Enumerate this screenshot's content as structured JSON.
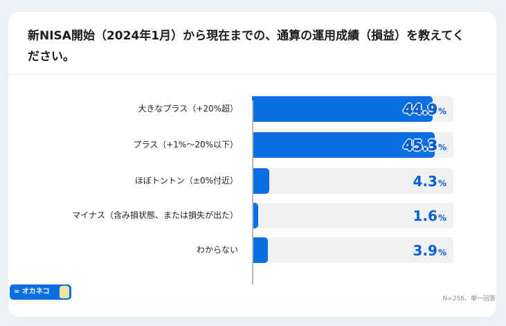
{
  "chart_data": {
    "type": "bar",
    "orientation": "horizontal",
    "title": "新NISA開始（2024年1月）から現在までの、通算の運用成績（損益）を教えてください。",
    "categories": [
      "大きなプラス（+20%超）",
      "プラス（+1%〜20%以下）",
      "ほぼトントン（±0%付近）",
      "マイナス（含み損状態、または損失が出た）",
      "わからない"
    ],
    "values": [
      44.9,
      45.3,
      4.3,
      1.6,
      3.9
    ],
    "unit": "%",
    "xlim": [
      0,
      50
    ],
    "grid": false
  },
  "footer": {
    "brand": "オカネコ",
    "note": "N=256、単一回答"
  },
  "colors": {
    "bar": "#0a6fe0",
    "track": "#f0f1f3",
    "value": "#0a5ed0"
  }
}
